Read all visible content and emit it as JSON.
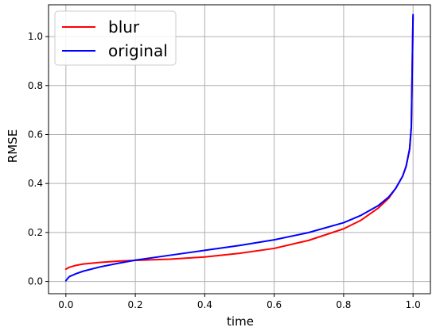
{
  "chart_data": {
    "type": "line",
    "title": "",
    "xlabel": "time",
    "ylabel": "RMSE",
    "xlim": [
      -0.05,
      1.05
    ],
    "ylim": [
      -0.05,
      1.13
    ],
    "xticks": [
      0.0,
      0.2,
      0.4,
      0.6,
      0.8,
      1.0
    ],
    "xtick_labels": [
      "0.0",
      "0.2",
      "0.4",
      "0.6",
      "0.8",
      "1.0"
    ],
    "yticks": [
      0.0,
      0.2,
      0.4,
      0.6,
      0.8,
      1.0
    ],
    "ytick_labels": [
      "0.0",
      "0.2",
      "0.4",
      "0.6",
      "0.8",
      "1.0"
    ],
    "grid": true,
    "legend": "top-left",
    "series": [
      {
        "name": "blur",
        "color": "#ff0000",
        "x": [
          0.0,
          0.01,
          0.03,
          0.05,
          0.1,
          0.15,
          0.2,
          0.3,
          0.4,
          0.5,
          0.6,
          0.7,
          0.8,
          0.85,
          0.9,
          0.93,
          0.95,
          0.97,
          0.98,
          0.99,
          0.995,
          1.0
        ],
        "y": [
          0.05,
          0.058,
          0.066,
          0.071,
          0.078,
          0.083,
          0.086,
          0.091,
          0.1,
          0.115,
          0.135,
          0.168,
          0.215,
          0.25,
          0.3,
          0.34,
          0.38,
          0.43,
          0.47,
          0.54,
          0.63,
          1.08
        ]
      },
      {
        "name": "original",
        "color": "#0000ff",
        "x": [
          0.0,
          0.005,
          0.01,
          0.03,
          0.05,
          0.1,
          0.15,
          0.2,
          0.3,
          0.4,
          0.5,
          0.6,
          0.7,
          0.8,
          0.85,
          0.9,
          0.93,
          0.95,
          0.97,
          0.98,
          0.99,
          0.995,
          1.0
        ],
        "y": [
          0.003,
          0.012,
          0.02,
          0.032,
          0.042,
          0.06,
          0.074,
          0.087,
          0.107,
          0.127,
          0.147,
          0.17,
          0.2,
          0.24,
          0.27,
          0.31,
          0.345,
          0.38,
          0.43,
          0.47,
          0.54,
          0.63,
          1.09
        ]
      }
    ]
  }
}
